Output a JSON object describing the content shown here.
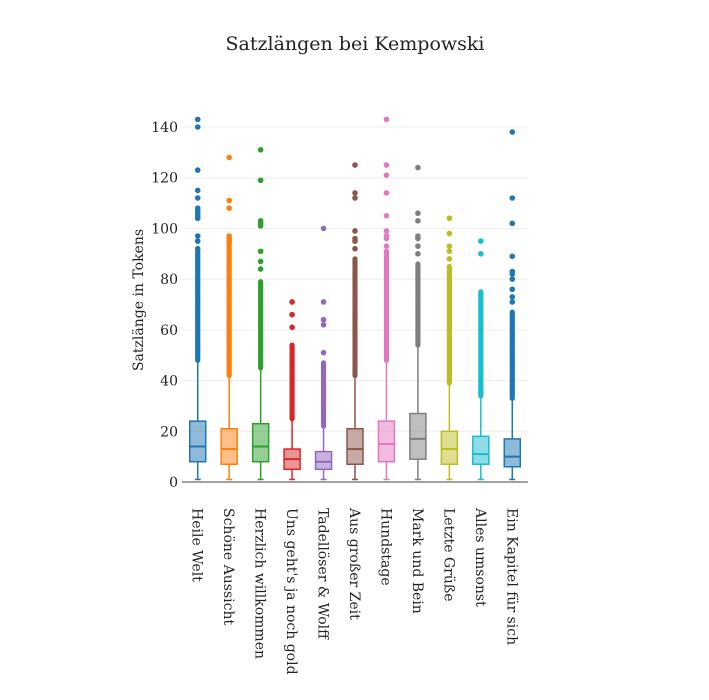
{
  "chart_data": {
    "type": "box",
    "title": "Satzlängen bei Kempowski",
    "ylabel": "Satzlänge in Tokens",
    "xlabel": "",
    "ylim": [
      0,
      150
    ],
    "yticks": [
      0,
      20,
      40,
      60,
      80,
      100,
      120,
      140
    ],
    "grid": true,
    "legend": "none",
    "categories": [
      "Heile Welt",
      "Schöne Aussicht",
      "Herzlich willkommen",
      "Uns geht's ja noch gold",
      "Tadellöser & Wolff",
      "Aus großer Zeit",
      "Hundstage",
      "Mark und Bein",
      "Letzte Grüße",
      "Alles umsonst",
      "Ein Kapitel für sich"
    ],
    "series": [
      {
        "category": "Heile Welt",
        "color": "#1f77b4",
        "min": 1,
        "q1": 8,
        "median": 14,
        "q3": 24,
        "fence_high": 48,
        "outliers_dense_to": 91,
        "outliers": [
          92,
          95,
          97,
          104,
          105,
          106,
          107,
          108,
          112,
          115,
          123,
          140,
          143
        ]
      },
      {
        "category": "Schöne Aussicht",
        "color": "#ff7f0e",
        "min": 1,
        "q1": 7,
        "median": 13,
        "q3": 21,
        "fence_high": 42,
        "outliers_dense_to": 93,
        "outliers": [
          94,
          95,
          96,
          97,
          108,
          111,
          128
        ]
      },
      {
        "category": "Herzlich willkommen",
        "color": "#2ca02c",
        "min": 1,
        "q1": 8,
        "median": 14,
        "q3": 23,
        "fence_high": 45,
        "outliers_dense_to": 79,
        "outliers": [
          84,
          87,
          91,
          101,
          102,
          103,
          119,
          131
        ]
      },
      {
        "category": "Uns geht's ja noch gold",
        "color": "#d62728",
        "min": 1,
        "q1": 5,
        "median": 9,
        "q3": 13,
        "fence_high": 25,
        "outliers_dense_to": 54,
        "outliers": [
          61,
          66,
          71
        ]
      },
      {
        "category": "Tadellöser & Wolff",
        "color": "#9467bd",
        "min": 1,
        "q1": 5,
        "median": 8,
        "q3": 12,
        "fence_high": 22,
        "outliers_dense_to": 47,
        "outliers": [
          51,
          62,
          64,
          71,
          100
        ]
      },
      {
        "category": "Aus großer Zeit",
        "color": "#8c564b",
        "min": 1,
        "q1": 7,
        "median": 13,
        "q3": 21,
        "fence_high": 42,
        "outliers_dense_to": 88,
        "outliers": [
          92,
          95,
          96,
          99,
          112,
          114,
          125
        ]
      },
      {
        "category": "Hundstage",
        "color": "#e377c2",
        "min": 1,
        "q1": 8,
        "median": 15,
        "q3": 24,
        "fence_high": 48,
        "outliers_dense_to": 91,
        "outliers": [
          93,
          96,
          97,
          99,
          105,
          114,
          121,
          125,
          143
        ]
      },
      {
        "category": "Mark und Bein",
        "color": "#7f7f7f",
        "min": 1,
        "q1": 9,
        "median": 17,
        "q3": 27,
        "fence_high": 54,
        "outliers_dense_to": 86,
        "outliers": [
          90,
          93,
          96,
          97,
          103,
          106,
          124
        ]
      },
      {
        "category": "Letzte Grüße",
        "color": "#bcbd22",
        "min": 1,
        "q1": 7,
        "median": 13,
        "q3": 20,
        "fence_high": 39,
        "outliers_dense_to": 85,
        "outliers": [
          88,
          91,
          93,
          98,
          104
        ]
      },
      {
        "category": "Alles umsonst",
        "color": "#17becf",
        "min": 1,
        "q1": 7,
        "median": 11,
        "q3": 18,
        "fence_high": 34,
        "outliers_dense_to": 75,
        "outliers": [
          90,
          95
        ]
      },
      {
        "category": "Ein Kapitel für sich",
        "color": "#1f77b4",
        "min": 1,
        "q1": 6,
        "median": 10,
        "q3": 17,
        "fence_high": 33,
        "outliers_dense_to": 67,
        "outliers": [
          71,
          73,
          76,
          80,
          82,
          83,
          89,
          102,
          112,
          138
        ]
      }
    ]
  }
}
